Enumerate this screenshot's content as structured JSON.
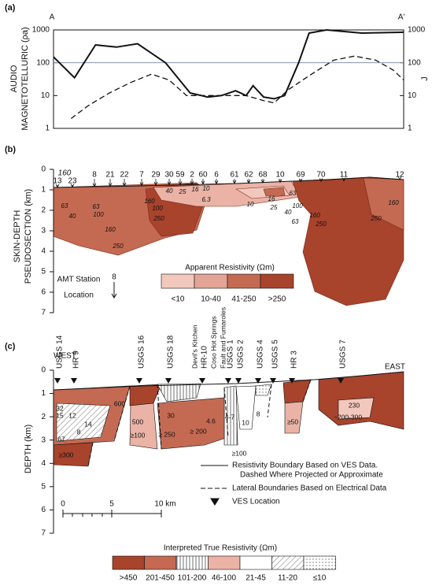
{
  "chart_data": {
    "type": "line",
    "panel_label": "(a)",
    "left_label": "A",
    "right_label": "A'",
    "ylabel": [
      "AUDIO",
      "MAGNETOTELLURIC (ρa)"
    ],
    "y2label": "J",
    "log_scale": true,
    "ylim": [
      1,
      1000
    ],
    "yticks": [
      1,
      10,
      100,
      1000
    ],
    "y2lim": [
      1,
      1000
    ],
    "y2ticks": [
      1,
      10,
      100,
      1000
    ],
    "xlim": [
      0,
      100
    ],
    "hline": 100,
    "series": [
      {
        "color": "#111111",
        "style": "solid",
        "x": [
          0,
          6,
          12,
          18,
          24,
          32,
          39,
          44,
          48,
          52,
          55,
          57,
          60,
          63,
          66,
          70,
          73,
          78,
          88,
          100
        ],
        "values": [
          150,
          35,
          350,
          300,
          380,
          100,
          12,
          9,
          10,
          14,
          10,
          20,
          9,
          8,
          10,
          100,
          800,
          1000,
          800,
          850
        ]
      },
      {
        "color": "#111111",
        "style": "dashed",
        "axis": "y2",
        "x": [
          5,
          10,
          16,
          22,
          28,
          33,
          38,
          46,
          55,
          60,
          63,
          67,
          73,
          80,
          86,
          92,
          97,
          100
        ],
        "values": [
          2,
          5,
          12,
          25,
          45,
          30,
          10,
          10,
          10,
          7,
          6,
          15,
          40,
          120,
          160,
          120,
          60,
          30
        ]
      }
    ]
  },
  "section_b": {
    "panel_label": "(b)",
    "ylabel": [
      "SKIN-DEPTH",
      "PSEUDOSECTION (km)"
    ],
    "ylim": [
      0,
      7
    ],
    "yticks": [
      0,
      1,
      2,
      3,
      4,
      5,
      6,
      7
    ],
    "stations": [
      "13",
      "23",
      "8",
      "21",
      "22",
      "7",
      "29",
      "30",
      "59",
      "2",
      "60",
      "6",
      "61",
      "62",
      "68",
      "10",
      "69",
      "70",
      "11",
      "12"
    ],
    "extra_station": "160",
    "contours": [
      "63",
      "40",
      "100",
      "160",
      "250",
      "63",
      "250",
      "160",
      "100",
      "40",
      "25",
      "16",
      "10",
      "6.3",
      "10",
      "16",
      "25",
      "63",
      "40",
      "63",
      "100",
      "160",
      "250",
      "250",
      "160"
    ],
    "legend": {
      "title": "Apparent Resistivity (Ωm)",
      "items": [
        {
          "label": "<10",
          "color": "#f2c8bd"
        },
        {
          "label": "10-40",
          "color": "#e2a494"
        },
        {
          "label": "41-250",
          "color": "#c46a52"
        },
        {
          "label": ">250",
          "color": "#a8432c"
        }
      ]
    },
    "amt": {
      "lines": [
        "AMT Station",
        "Location"
      ],
      "example": "8"
    }
  },
  "section_c": {
    "panel_label": "(c)",
    "west": "WEST",
    "east": "EAST",
    "ylabel": "DEPTH (km)",
    "ylim": [
      0,
      7
    ],
    "yticks": [
      0,
      1,
      2,
      3,
      4,
      5,
      6,
      7
    ],
    "wells": [
      "USGS 14",
      "HR 9",
      "USGS 16",
      "USGS 18",
      "Devil's Kitchen",
      "HR-10",
      "Coso Hot Springs",
      "Fault and Fumaroles",
      "USGS 1",
      "USGS 2",
      "USGS 4",
      "USGS 5",
      "HR 3",
      "USGS 7"
    ],
    "values": [
      "600",
      "500",
      "≥100",
      "30",
      "≥ 250",
      "≥ 200",
      "4.6",
      "4-7",
      "10",
      "≥100",
      "8",
      "≥50",
      "230",
      "~200-300",
      "32",
      "15",
      "12",
      "14",
      "8",
      "67",
      "≥300"
    ],
    "key": [
      "Resistivity Boundary Based on VES Data.",
      "Dashed Where Projected or Approximate",
      "Lateral Boundaries Based on Electrical Data",
      "VES Location"
    ],
    "scale": [
      "0",
      "5",
      "10 km"
    ],
    "legend": {
      "title": "Interpreted True Resistivity (Ωm)",
      "items": [
        {
          "label": ">450",
          "color": "#a8432c"
        },
        {
          "label": "201-450",
          "color": "#c46a52"
        },
        {
          "label": "101-200",
          "pattern": "vertical"
        },
        {
          "label": "46-100",
          "color": "#eab3a6"
        },
        {
          "label": "21-45",
          "color": "#ffffff"
        },
        {
          "label": "11-20",
          "pattern": "hatch"
        },
        {
          "label": "≤10",
          "pattern": "dots"
        }
      ]
    }
  }
}
